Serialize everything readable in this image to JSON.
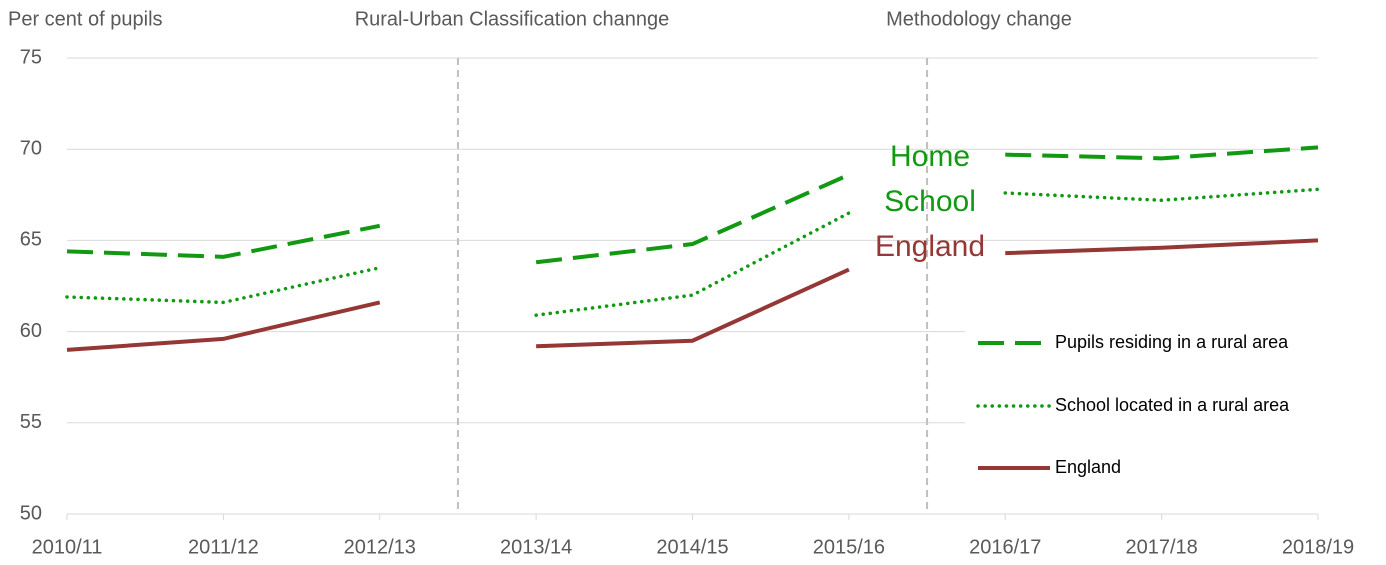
{
  "chart_data": {
    "type": "line",
    "y_label": "Per cent of pupils",
    "categories": [
      "2010/11",
      "2011/12",
      "2012/13",
      "2013/14",
      "2014/15",
      "2015/16",
      "2016/17",
      "2017/18",
      "2018/19"
    ],
    "series": [
      {
        "name": "Pupils residing in a rural area",
        "color": "#119911",
        "style": "dashed",
        "values": [
          64.4,
          64.1,
          65.8,
          63.8,
          64.8,
          68.6,
          69.7,
          69.5,
          70.1
        ]
      },
      {
        "name": "School located in a rural area",
        "color": "#119911",
        "style": "dotted",
        "values": [
          61.9,
          61.6,
          63.5,
          60.9,
          62.0,
          66.5,
          67.6,
          67.2,
          67.8
        ]
      },
      {
        "name": "England",
        "color": "#953735",
        "style": "solid",
        "values": [
          59.0,
          59.6,
          61.6,
          59.2,
          59.5,
          63.4,
          64.3,
          64.6,
          65.0
        ]
      }
    ],
    "breaks": [
      {
        "after": "2012/13",
        "label": "Rural-Urban Classification channge"
      },
      {
        "after": "2015/16",
        "label": "Methodology change"
      }
    ],
    "annotations": [
      {
        "text": "Home",
        "color": "#119911"
      },
      {
        "text": "School",
        "color": "#119911"
      },
      {
        "text": "England",
        "color": "#953735"
      }
    ],
    "ylim": [
      50,
      75
    ],
    "yticks": [
      50,
      55,
      60,
      65,
      70,
      75
    ],
    "grid": true,
    "legend": "lower right"
  }
}
